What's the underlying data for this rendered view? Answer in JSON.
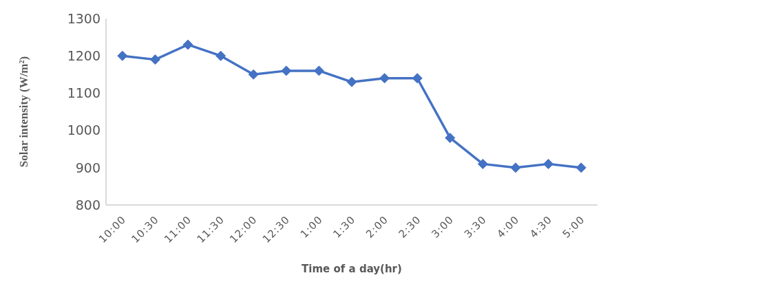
{
  "chart_data": {
    "type": "line",
    "xlabel": "Time of a day(hr)",
    "ylabel": "Solar intensity  (W/m²)",
    "categories": [
      "10:00",
      "10:30",
      "11:00",
      "11:30",
      "12:00",
      "12:30",
      "1:00",
      "1:30",
      "2:00",
      "2:30",
      "3:00",
      "3:30",
      "4:00",
      "4:30",
      "5:00"
    ],
    "series": [
      {
        "color": "#4472c4",
        "values": [
          1200,
          1190,
          1230,
          1200,
          1150,
          1160,
          1160,
          1130,
          1140,
          1140,
          980,
          910,
          900,
          910,
          900
        ]
      }
    ],
    "ylim": [
      800,
      1300
    ],
    "yticks": [
      800,
      900,
      1000,
      1100,
      1200,
      1300
    ],
    "grid": false,
    "legend": false,
    "marker": "diamond",
    "line_style": "solid"
  }
}
